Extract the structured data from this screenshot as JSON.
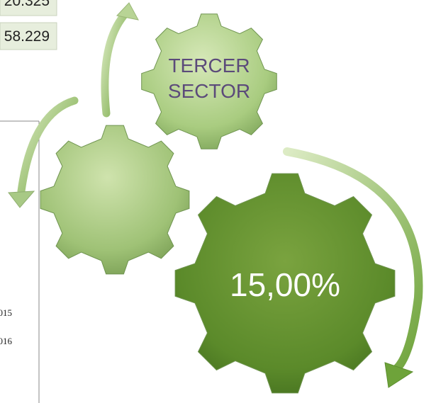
{
  "table": {
    "rows": [
      [
        "20.325"
      ],
      [
        "58.229"
      ]
    ]
  },
  "chart_legend": [
    "2015",
    "2016"
  ],
  "gears": {
    "top_label": "TERCER SECTOR",
    "big_label": "15,00%"
  }
}
